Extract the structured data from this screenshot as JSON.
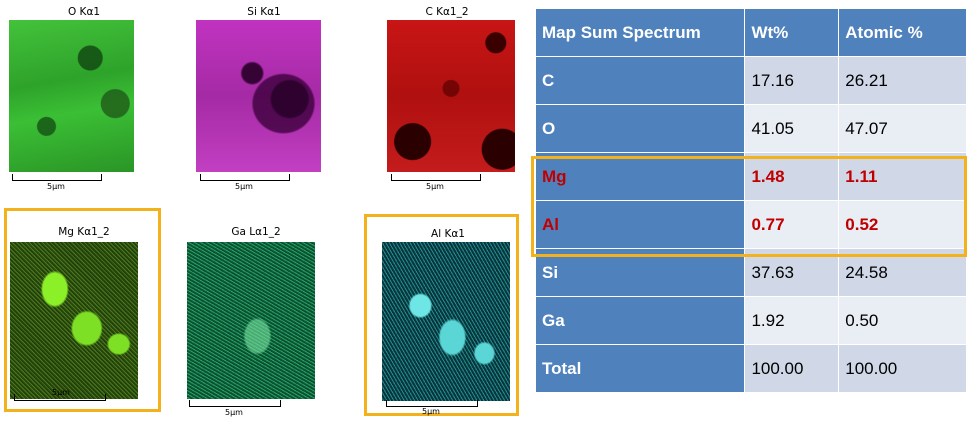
{
  "maps": [
    {
      "title": "O Kα1",
      "scale": "5µm"
    },
    {
      "title": "Si Kα1",
      "scale": "5µm"
    },
    {
      "title": "C Kα1_2",
      "scale": "5µm"
    },
    {
      "title": "Mg Kα1_2",
      "scale": "5µm"
    },
    {
      "title": "Ga Lα1_2",
      "scale": "5µm"
    },
    {
      "title": "Al Kα1",
      "scale": "5µm"
    }
  ],
  "highlight_color": "#f3b21c",
  "table": {
    "headers": [
      "Map Sum Spectrum",
      "Wt%",
      "Atomic %"
    ],
    "rows": [
      {
        "element": "C",
        "wt": "17.16",
        "atomic": "26.21"
      },
      {
        "element": "O",
        "wt": "41.05",
        "atomic": "47.07"
      },
      {
        "element": "Mg",
        "wt": "1.48",
        "atomic": "1.11"
      },
      {
        "element": "Al",
        "wt": "0.77",
        "atomic": "0.52"
      },
      {
        "element": "Si",
        "wt": "37.63",
        "atomic": "24.58"
      },
      {
        "element": "Ga",
        "wt": "1.92",
        "atomic": "0.50"
      },
      {
        "element": "Total",
        "wt": "100.00",
        "atomic": "100.00"
      }
    ],
    "header_color": "#4f81bd",
    "highlight_text_color": "#c00000"
  }
}
